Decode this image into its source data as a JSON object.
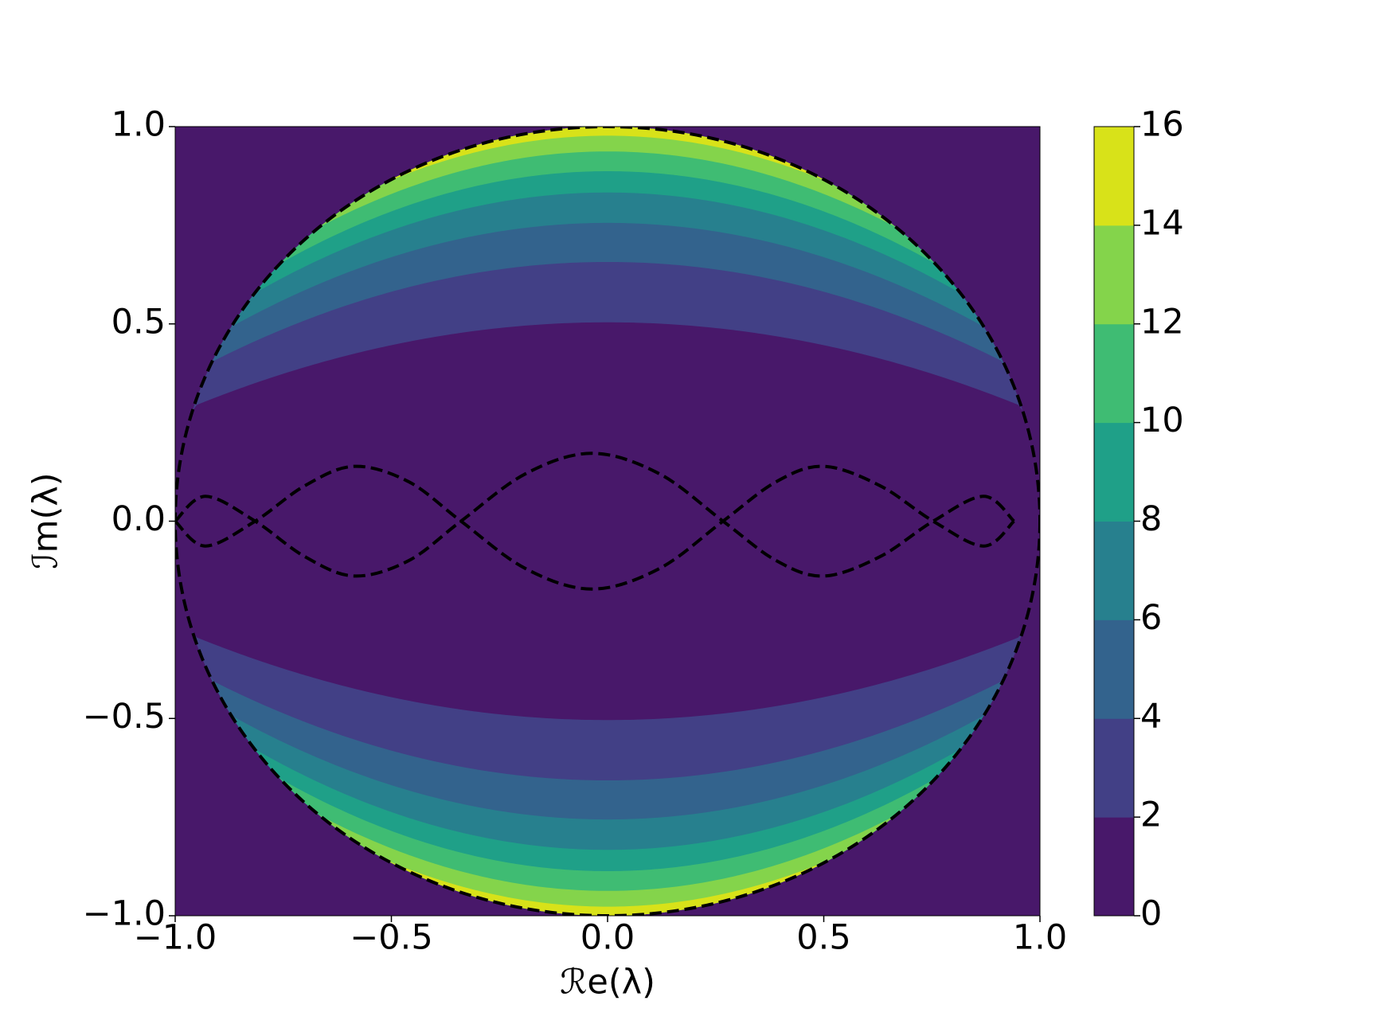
{
  "chart_data": {
    "type": "contour",
    "x_label": "ℛe(λ)",
    "y_label": "ℐm(λ)",
    "xlim": [
      -1,
      1
    ],
    "ylim": [
      -1,
      1
    ],
    "xticks": [
      {
        "value": -1,
        "label": "−1.0"
      },
      {
        "value": -0.5,
        "label": "−0.5"
      },
      {
        "value": 0,
        "label": "0.0"
      },
      {
        "value": 0.5,
        "label": "0.5"
      },
      {
        "value": 1,
        "label": "1.0"
      }
    ],
    "yticks": [
      {
        "value": -1,
        "label": "−1.0"
      },
      {
        "value": -0.5,
        "label": "−0.5"
      },
      {
        "value": 0,
        "label": "0.0"
      },
      {
        "value": 0.5,
        "label": "0.5"
      },
      {
        "value": 1,
        "label": "1.0"
      }
    ],
    "levels": [
      0,
      2,
      4,
      6,
      8,
      10,
      12,
      14,
      16
    ],
    "colors": [
      "#48186a",
      "#424086",
      "#33638d",
      "#27808e",
      "#1fa088",
      "#3fbc73",
      "#84d44b",
      "#d8e219"
    ],
    "contour_boundaries_at_re0": [
      0.504,
      0.657,
      0.756,
      0.833,
      0.887,
      0.937,
      0.977
    ],
    "circle_radius": 1,
    "curves": [
      {
        "x": [
          -1,
          -0.93,
          -0.815,
          -0.7,
          -0.586,
          -0.46,
          -0.339,
          -0.19,
          -0.036,
          0.12,
          0.267,
          0.39,
          0.5,
          0.63,
          0.753,
          0.87,
          0.94
        ],
        "y": [
          0,
          0.063,
          0,
          -0.09,
          -0.139,
          -0.1,
          0,
          0.12,
          0.172,
          0.12,
          0,
          -0.1,
          -0.139,
          -0.09,
          0,
          0.063,
          0
        ]
      },
      {
        "x": [
          -1,
          -0.93,
          -0.815,
          -0.7,
          -0.586,
          -0.46,
          -0.339,
          -0.19,
          -0.036,
          0.12,
          0.267,
          0.39,
          0.5,
          0.63,
          0.753,
          0.87,
          0.94
        ],
        "y": [
          0,
          -0.063,
          0,
          0.09,
          0.139,
          0.1,
          0,
          -0.12,
          -0.172,
          -0.12,
          0,
          0.1,
          0.139,
          0.09,
          0,
          -0.063,
          0
        ]
      }
    ],
    "colorbar_ticks": [
      0,
      2,
      4,
      6,
      8,
      10,
      12,
      14,
      16
    ]
  }
}
